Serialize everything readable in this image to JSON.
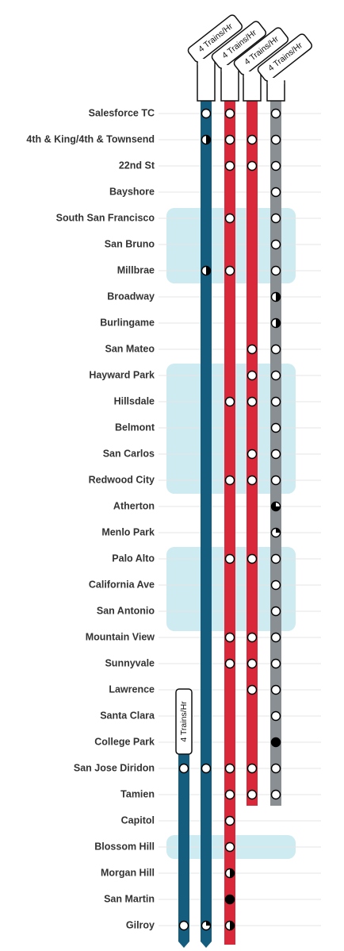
{
  "stations": [
    "Salesforce TC",
    "4th & King/4th & Townsend",
    "22nd St",
    "Bayshore",
    "South San Francisco",
    "San Bruno",
    "Millbrae",
    "Broadway",
    "Burlingame",
    "San Mateo",
    "Hayward Park",
    "Hillsdale",
    "Belmont",
    "San Carlos",
    "Redwood City",
    "Atherton",
    "Menlo Park",
    "Palo Alto",
    "California Ave",
    "San Antonio",
    "Mountain View",
    "Sunnyvale",
    "Lawrence",
    "Santa Clara",
    "College Park",
    "San Jose Diridon",
    "Tamien",
    "Capitol",
    "Blossom Hill",
    "Morgan Hill",
    "San Martin",
    "Gilroy"
  ],
  "lines": [
    {
      "label": "4 Trains/Hr",
      "color": "#155d7e",
      "stops": [
        [
          25,
          "o"
        ],
        [
          31,
          "o"
        ]
      ]
    },
    {
      "label": "4 Trains/Hr",
      "color": "#155d7e",
      "stops": [
        [
          0,
          "o"
        ],
        [
          1,
          "h"
        ],
        [
          6,
          "h"
        ],
        [
          25,
          "o"
        ],
        [
          31,
          "q"
        ]
      ]
    },
    {
      "label": "4 Trains/Hr",
      "color": "#d9283a",
      "stops": [
        [
          0,
          "o"
        ],
        [
          1,
          "o"
        ],
        [
          2,
          "o"
        ],
        [
          4,
          "o"
        ],
        [
          6,
          "o"
        ],
        [
          11,
          "o"
        ],
        [
          14,
          "o"
        ],
        [
          17,
          "o"
        ],
        [
          20,
          "o"
        ],
        [
          21,
          "o"
        ],
        [
          25,
          "o"
        ],
        [
          26,
          "o"
        ],
        [
          27,
          "o"
        ],
        [
          28,
          "o"
        ],
        [
          29,
          "h"
        ],
        [
          30,
          "f"
        ],
        [
          31,
          "h"
        ]
      ]
    },
    {
      "label": "4 Trains/Hr",
      "color": "#d9283a",
      "stops": [
        [
          1,
          "o"
        ],
        [
          2,
          "o"
        ],
        [
          9,
          "o"
        ],
        [
          10,
          "o"
        ],
        [
          11,
          "o"
        ],
        [
          13,
          "o"
        ],
        [
          14,
          "o"
        ],
        [
          17,
          "o"
        ],
        [
          20,
          "o"
        ],
        [
          21,
          "o"
        ],
        [
          22,
          "o"
        ],
        [
          25,
          "o"
        ],
        [
          26,
          "o"
        ]
      ]
    },
    {
      "label": "4 Trains/Hr",
      "color": "#8a8f94",
      "stops": [
        [
          0,
          "o"
        ],
        [
          1,
          "o"
        ],
        [
          2,
          "o"
        ],
        [
          3,
          "o"
        ],
        [
          4,
          "o"
        ],
        [
          5,
          "o"
        ],
        [
          6,
          "o"
        ],
        [
          7,
          "h"
        ],
        [
          8,
          "h"
        ],
        [
          9,
          "o"
        ],
        [
          10,
          "o"
        ],
        [
          11,
          "o"
        ],
        [
          12,
          "o"
        ],
        [
          13,
          "o"
        ],
        [
          14,
          "o"
        ],
        [
          15,
          "t"
        ],
        [
          16,
          "q"
        ],
        [
          17,
          "o"
        ],
        [
          18,
          "o"
        ],
        [
          19,
          "o"
        ],
        [
          20,
          "o"
        ],
        [
          21,
          "o"
        ],
        [
          22,
          "o"
        ],
        [
          23,
          "o"
        ],
        [
          24,
          "f"
        ],
        [
          25,
          "o"
        ],
        [
          26,
          "o"
        ]
      ]
    }
  ]
}
